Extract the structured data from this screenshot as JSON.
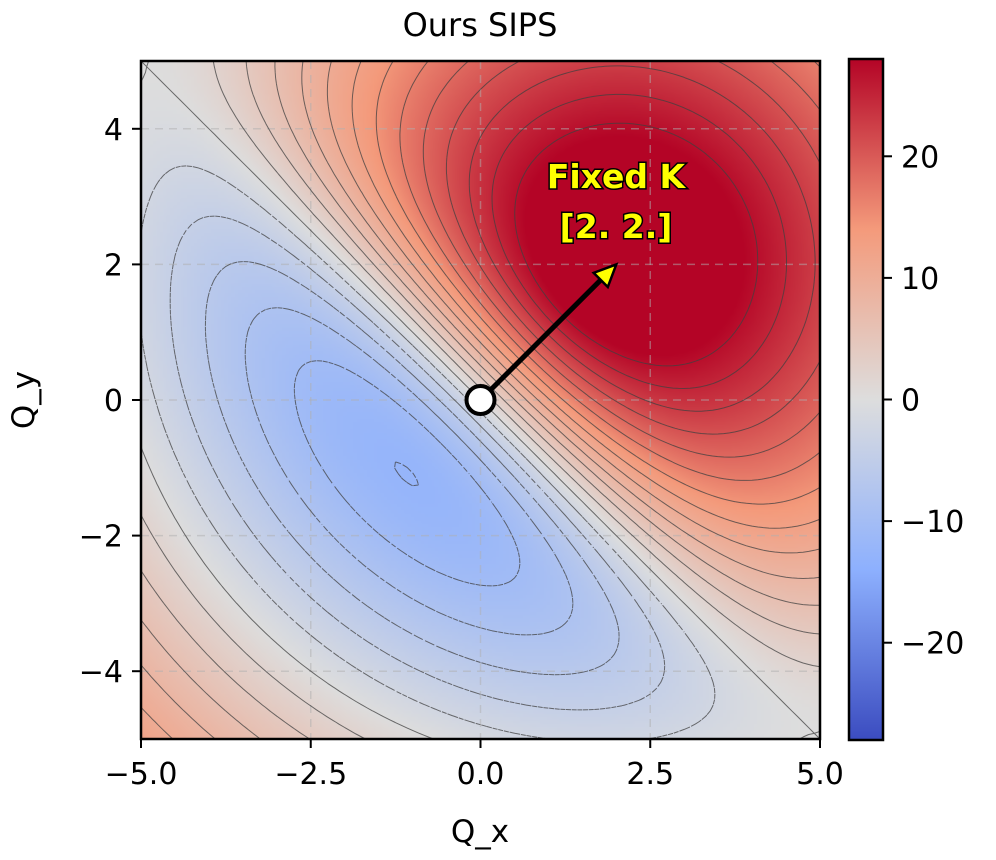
{
  "chart_data": {
    "type": "heatmap",
    "title": "Ours SIPS",
    "xlabel": "Q_x",
    "ylabel": "Q_y",
    "xlim": [
      -5.0,
      5.0
    ],
    "ylim": [
      -5.0,
      5.0
    ],
    "x_ticks": [
      -5.0,
      -2.5,
      0.0,
      2.5,
      5.0
    ],
    "x_tick_labels": [
      "−5.0",
      "−2.5",
      "0.0",
      "2.5",
      "5.0"
    ],
    "y_ticks": [
      4,
      2,
      0,
      -2,
      -4
    ],
    "y_tick_labels": [
      "4",
      "2",
      "0",
      "−2",
      "−4"
    ],
    "grid": true,
    "colormap": "coolwarm",
    "colors": {
      "low": "#3b4cc0",
      "mid": "#dddddd",
      "high": "#b40426"
    },
    "colorbar": {
      "range": [
        -28,
        28
      ],
      "ticks": [
        20,
        10,
        0,
        -10,
        -20
      ],
      "tick_labels": [
        "20",
        "10",
        "0",
        "−10",
        "−20"
      ]
    },
    "fixed_key": {
      "x": 2.0,
      "y": 2.0
    },
    "origin_marker": {
      "x": 0.0,
      "y": 0.0
    },
    "annotation": {
      "line1": "Fixed K",
      "line2": "[2. 2.]"
    },
    "contour_levels": 27
  }
}
